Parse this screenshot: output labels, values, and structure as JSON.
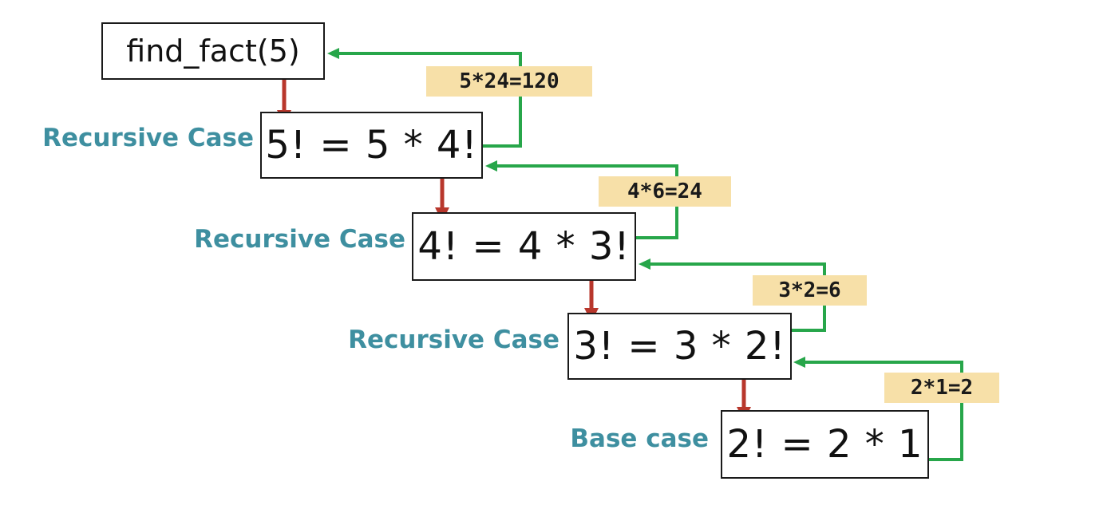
{
  "diagram": {
    "top_call": "find_fact(5)",
    "steps": [
      {
        "case_label": "Recursive Case",
        "equation": "5! = 5 * 4!",
        "return_value": "5*24=120"
      },
      {
        "case_label": "Recursive Case",
        "equation": "4! = 4 * 3!",
        "return_value": "4*6=24"
      },
      {
        "case_label": "Recursive Case",
        "equation": "3! = 3 * 2!",
        "return_value": "3*2=6"
      },
      {
        "case_label": "Base case",
        "equation": "2! = 2 * 1",
        "return_value": "2*1=2"
      }
    ],
    "colors": {
      "call_arrow": "#b8372c",
      "return_arrow": "#27a64a",
      "case_label": "#3e8fa0",
      "return_label_bg": "#f7e0a8"
    }
  }
}
